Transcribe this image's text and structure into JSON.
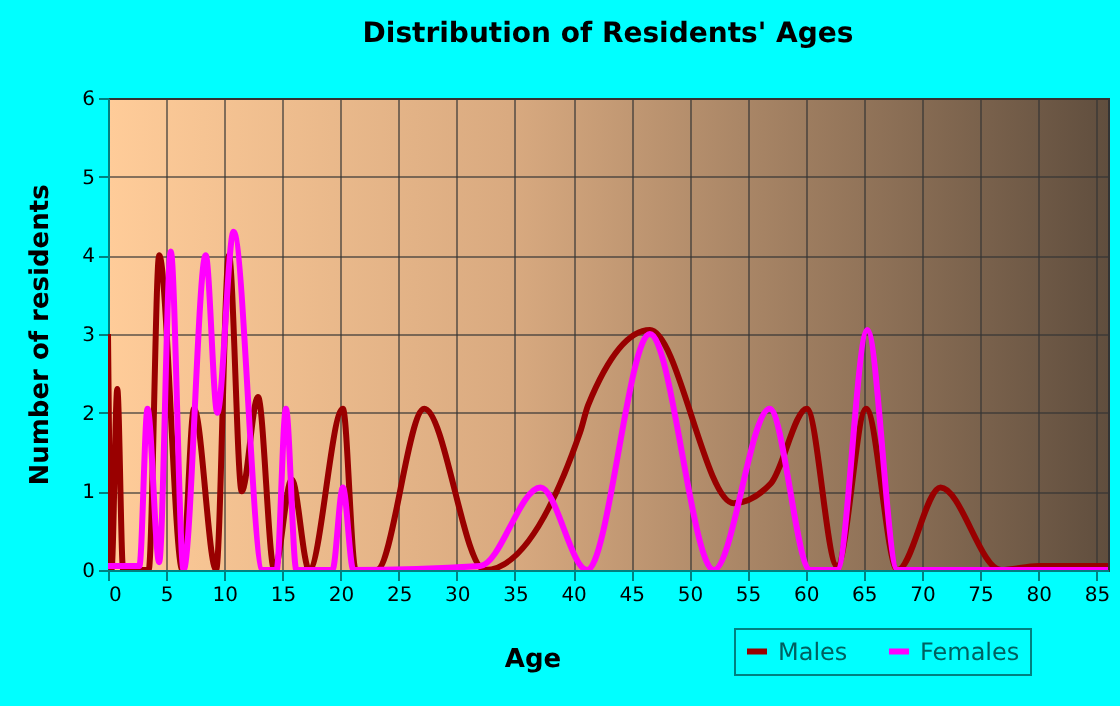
{
  "chart_data": {
    "type": "line",
    "title": "Distribution of Residents' Ages",
    "xlabel": "Age",
    "ylabel": "Number of residents",
    "xlim": [
      0,
      86
    ],
    "ylim": [
      0,
      6
    ],
    "xticks": [
      0,
      5,
      10,
      15,
      20,
      25,
      30,
      35,
      40,
      45,
      50,
      55,
      60,
      65,
      70,
      75,
      80,
      85
    ],
    "yticks": [
      0,
      1,
      2,
      3,
      4,
      5,
      6
    ],
    "grid": true,
    "legend": "bottom right",
    "marker": "none",
    "line_style": "solid",
    "series": [
      {
        "name": "Males",
        "color": "#990000",
        "x": [
          0,
          0.3,
          0.8,
          1.3,
          3.5,
          4.4,
          6.4,
          7.4,
          9.3,
          10.4,
          11.5,
          12.9,
          14.3,
          15.8,
          17.3,
          20.2,
          21.3,
          23.1,
          27.2,
          32.4,
          40.6,
          41.3,
          46.6,
          53.8,
          57,
          60.1,
          62.7,
          65.2,
          67.9,
          71.6,
          76.8,
          80,
          86
        ],
        "values": [
          3,
          0,
          2.3,
          0,
          0,
          4,
          0,
          2.05,
          0,
          4,
          1,
          2.2,
          0,
          1.15,
          0,
          2.05,
          0,
          0,
          2.05,
          0,
          1.75,
          2.1,
          3.05,
          0.85,
          1.1,
          2.05,
          0.05,
          2.05,
          0,
          1.05,
          0,
          0.05,
          0.05
        ]
      },
      {
        "name": "Females",
        "color": "#ff00ff",
        "x": [
          0,
          2.7,
          3.4,
          4.4,
          5.4,
          6.5,
          8.4,
          9.4,
          10.8,
          13.3,
          14.5,
          15.3,
          16.2,
          19.3,
          20.2,
          21.1,
          32,
          37.2,
          41.2,
          46.6,
          52.1,
          56.9,
          60.4,
          62.7,
          65.3,
          67.9,
          86
        ],
        "values": [
          0.05,
          0.05,
          2.05,
          0.1,
          4.05,
          0,
          4,
          2,
          4.3,
          0,
          0,
          2.05,
          0,
          0,
          1.05,
          0,
          0.05,
          1.05,
          0,
          3,
          0,
          2.05,
          0,
          0,
          3.05,
          0,
          0
        ]
      }
    ]
  }
}
